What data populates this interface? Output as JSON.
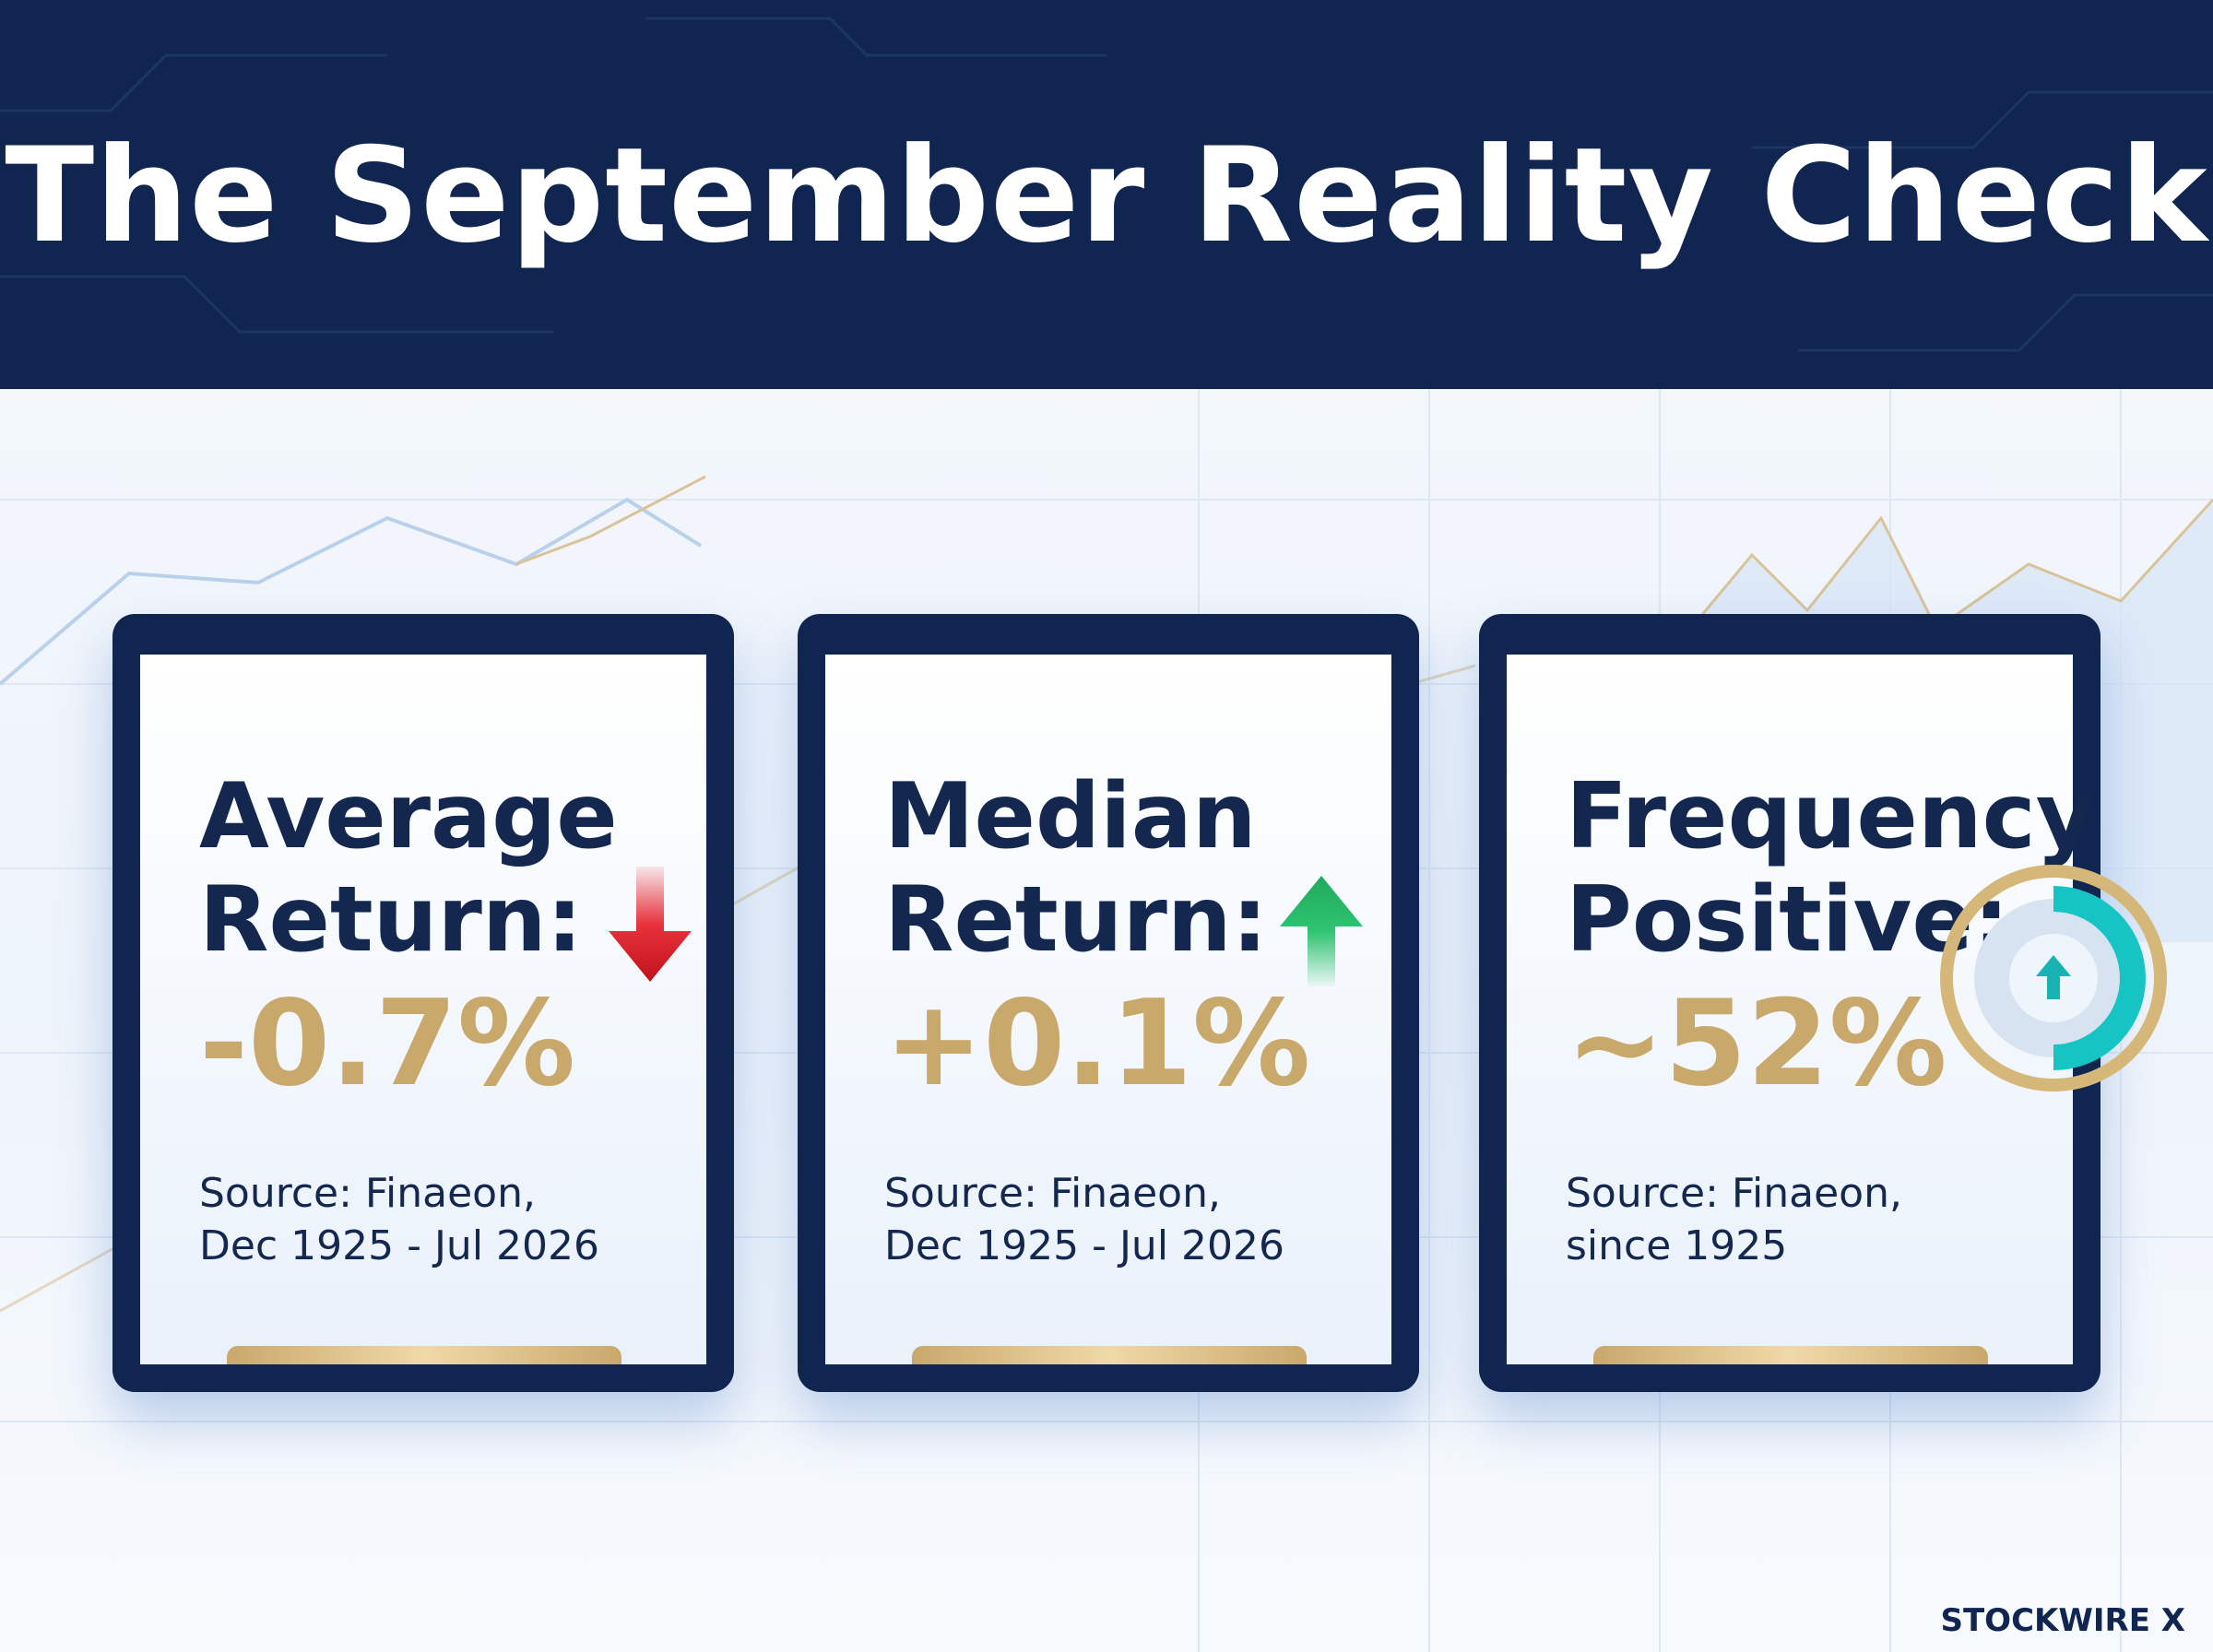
{
  "header": {
    "title": "The September Reality Check"
  },
  "cards": [
    {
      "label": [
        "Average",
        "Return:"
      ],
      "value": "-0.7%",
      "source": [
        "Source: Finaeon,",
        "Dec 1925 - Jul 2026"
      ]
    },
    {
      "label": [
        "Median",
        "Return:"
      ],
      "value": "+0.1%",
      "source": [
        "Source: Finaeon,",
        "Dec 1925 - Jul 2026"
      ]
    },
    {
      "label": [
        "Frequency",
        "Positive:"
      ],
      "value": "~52%",
      "source": [
        "Source: Finaeon,",
        "since 1925"
      ]
    }
  ],
  "brand": "STOCKWIRE X"
}
